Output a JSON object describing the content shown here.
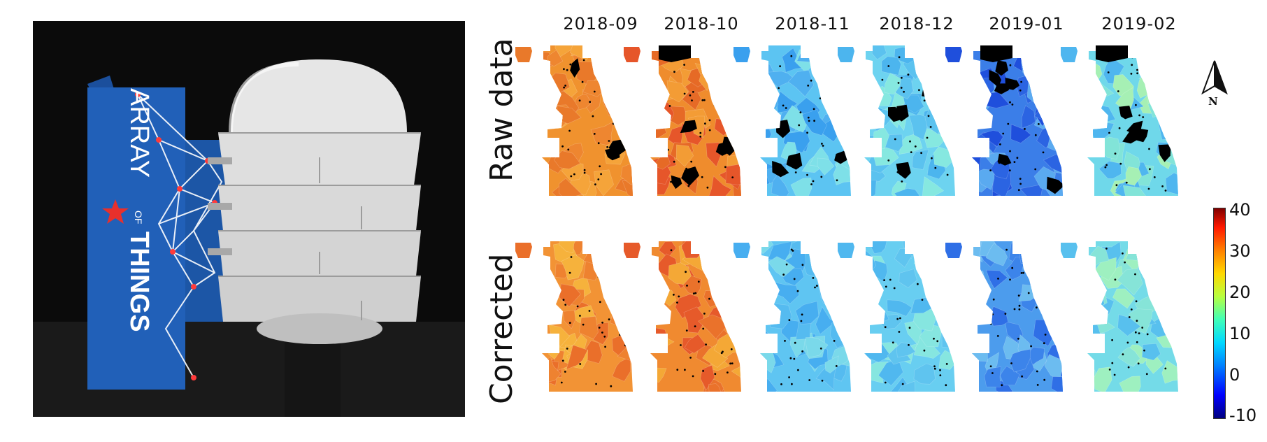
{
  "months": [
    "2018-09",
    "2018-10",
    "2018-11",
    "2018-12",
    "2019-01",
    "2019-02"
  ],
  "rows": [
    "Raw data",
    "Corrected"
  ],
  "photo": {
    "sign_text": [
      "ARRAY",
      "OF",
      "THINGS"
    ]
  },
  "colorbar": {
    "ticks": [
      "40",
      "30",
      "20",
      "10",
      "0",
      "-10"
    ],
    "values": [
      40,
      30,
      20,
      10,
      0,
      -10
    ]
  },
  "north_label": "N",
  "panels": {
    "raw": [
      {
        "fill": "#f0922e",
        "patches": [
          "#e9792a",
          "#f5a43a",
          "#ee8630"
        ],
        "nodata": "few"
      },
      {
        "fill": "#ef8c2d",
        "patches": [
          "#e6562a",
          "#f39c35",
          "#e66a26"
        ],
        "nodata": "many"
      },
      {
        "fill": "#5cc4f2",
        "patches": [
          "#3aa0ee",
          "#7ee0e8",
          "#4fb0f0"
        ],
        "nodata": "some"
      },
      {
        "fill": "#6dd3f0",
        "patches": [
          "#4cb5ee",
          "#86e8e0",
          "#5bc2ef"
        ],
        "nodata": "some"
      },
      {
        "fill": "#3b7ee8",
        "patches": [
          "#1f4fdc",
          "#5aaaf0",
          "#2b64e2"
        ],
        "nodata": "many"
      },
      {
        "fill": "#6fd8ea",
        "patches": [
          "#4fb6ef",
          "#a6f0b4",
          "#82e4d8"
        ],
        "nodata": "many"
      }
    ],
    "corrected": [
      {
        "fill": "#f29335",
        "patches": [
          "#ea6f2a",
          "#f6b23c",
          "#ee8230"
        ]
      },
      {
        "fill": "#f08a30",
        "patches": [
          "#e65a2a",
          "#f4a836",
          "#ea722b"
        ]
      },
      {
        "fill": "#5fc5f2",
        "patches": [
          "#47aef0",
          "#7ad9ea",
          "#55bbf0"
        ]
      },
      {
        "fill": "#68cef1",
        "patches": [
          "#50b8ef",
          "#86e6e0",
          "#5fc4ef"
        ]
      },
      {
        "fill": "#4c9ced",
        "patches": [
          "#2f6fe6",
          "#6cbcf0",
          "#3c84ea"
        ]
      },
      {
        "fill": "#74dbe8",
        "patches": [
          "#58c0ee",
          "#9ef0c0",
          "#86e4d8"
        ]
      }
    ]
  }
}
